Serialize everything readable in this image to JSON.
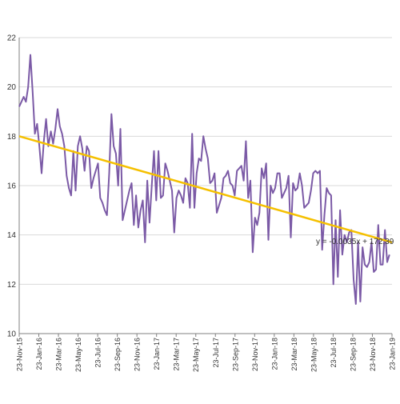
{
  "chart_data": {
    "type": "line",
    "ylim": [
      10,
      22
    ],
    "yticks": [
      10,
      12,
      14,
      16,
      18,
      20,
      22
    ],
    "grid": "horizontal",
    "legend": "none",
    "xticks": [
      "23-Nov-15",
      "23-Jan-16",
      "23-Mar-16",
      "23-May-16",
      "23-Jul-16",
      "23-Sep-16",
      "23-Nov-16",
      "23-Jan-17",
      "23-Mar-17",
      "23-May-17",
      "23-Jul-17",
      "23-Sep-17",
      "23-Nov-17",
      "23-Jan-18",
      "23-Mar-18",
      "23-May-18",
      "23-Jul-18",
      "23-Sep-18",
      "23-Nov-18",
      "23-Jan-19"
    ],
    "x_range": [
      "2015-11-23",
      "2019-01-30"
    ],
    "trendline": {
      "label": "y = -0.0035x + 172.39",
      "start": {
        "x": "2015-11-23",
        "y": 18.0
      },
      "end": {
        "x": "2019-01-30",
        "y": 13.7
      }
    },
    "colors": {
      "series": "#7b5aa6",
      "trend": "#f5c000",
      "grid": "#d9d9d9",
      "axis": "#808080"
    },
    "series": [
      {
        "points": [
          [
            "2015-11-23",
            19.2
          ],
          [
            "2015-11-30",
            19.4
          ],
          [
            "2015-12-07",
            19.6
          ],
          [
            "2015-12-14",
            19.4
          ],
          [
            "2015-12-21",
            20.0
          ],
          [
            "2015-12-28",
            21.3
          ],
          [
            "2016-01-04",
            19.8
          ],
          [
            "2016-01-11",
            18.1
          ],
          [
            "2016-01-18",
            18.5
          ],
          [
            "2016-01-25",
            17.6
          ],
          [
            "2016-02-01",
            16.5
          ],
          [
            "2016-02-08",
            17.8
          ],
          [
            "2016-02-15",
            18.7
          ],
          [
            "2016-02-22",
            17.6
          ],
          [
            "2016-03-01",
            18.2
          ],
          [
            "2016-03-08",
            17.7
          ],
          [
            "2016-03-15",
            18.3
          ],
          [
            "2016-03-22",
            19.1
          ],
          [
            "2016-03-29",
            18.4
          ],
          [
            "2016-04-05",
            18.1
          ],
          [
            "2016-04-12",
            17.6
          ],
          [
            "2016-04-19",
            16.4
          ],
          [
            "2016-04-26",
            15.9
          ],
          [
            "2016-05-03",
            15.6
          ],
          [
            "2016-05-10",
            17.4
          ],
          [
            "2016-05-17",
            15.8
          ],
          [
            "2016-05-24",
            17.6
          ],
          [
            "2016-05-31",
            18.0
          ],
          [
            "2016-06-07",
            17.5
          ],
          [
            "2016-06-14",
            16.6
          ],
          [
            "2016-06-21",
            17.6
          ],
          [
            "2016-06-28",
            17.4
          ],
          [
            "2016-07-05",
            15.9
          ],
          [
            "2016-07-12",
            16.3
          ],
          [
            "2016-07-19",
            16.6
          ],
          [
            "2016-07-26",
            16.9
          ],
          [
            "2016-08-02",
            15.5
          ],
          [
            "2016-08-09",
            15.3
          ],
          [
            "2016-08-16",
            15.0
          ],
          [
            "2016-08-23",
            14.8
          ],
          [
            "2016-08-30",
            16.5
          ],
          [
            "2016-09-06",
            18.9
          ],
          [
            "2016-09-13",
            17.6
          ],
          [
            "2016-09-20",
            17.3
          ],
          [
            "2016-09-27",
            16.0
          ],
          [
            "2016-10-04",
            18.3
          ],
          [
            "2016-10-11",
            14.6
          ],
          [
            "2016-10-18",
            15.0
          ],
          [
            "2016-10-25",
            15.4
          ],
          [
            "2016-11-01",
            15.8
          ],
          [
            "2016-11-08",
            16.1
          ],
          [
            "2016-11-15",
            14.4
          ],
          [
            "2016-11-22",
            15.6
          ],
          [
            "2016-11-29",
            14.3
          ],
          [
            "2016-12-06",
            15.0
          ],
          [
            "2016-12-13",
            15.4
          ],
          [
            "2016-12-20",
            13.7
          ],
          [
            "2016-12-27",
            16.2
          ],
          [
            "2017-01-03",
            14.5
          ],
          [
            "2017-01-10",
            16.0
          ],
          [
            "2017-01-17",
            17.4
          ],
          [
            "2017-01-24",
            15.4
          ],
          [
            "2017-01-31",
            17.4
          ],
          [
            "2017-02-07",
            15.5
          ],
          [
            "2017-02-14",
            15.6
          ],
          [
            "2017-02-21",
            16.9
          ],
          [
            "2017-02-28",
            16.6
          ],
          [
            "2017-03-07",
            16.2
          ],
          [
            "2017-03-14",
            15.8
          ],
          [
            "2017-03-21",
            14.1
          ],
          [
            "2017-03-28",
            15.5
          ],
          [
            "2017-04-04",
            15.8
          ],
          [
            "2017-04-11",
            15.6
          ],
          [
            "2017-04-18",
            15.3
          ],
          [
            "2017-04-25",
            16.3
          ],
          [
            "2017-05-02",
            16.1
          ],
          [
            "2017-05-09",
            15.1
          ],
          [
            "2017-05-16",
            18.1
          ],
          [
            "2017-05-23",
            15.1
          ],
          [
            "2017-05-30",
            16.5
          ],
          [
            "2017-06-06",
            17.1
          ],
          [
            "2017-06-13",
            17.0
          ],
          [
            "2017-06-20",
            18.0
          ],
          [
            "2017-06-27",
            17.5
          ],
          [
            "2017-07-04",
            17.1
          ],
          [
            "2017-07-11",
            16.1
          ],
          [
            "2017-07-18",
            16.2
          ],
          [
            "2017-07-25",
            16.5
          ],
          [
            "2017-08-01",
            14.9
          ],
          [
            "2017-08-08",
            15.2
          ],
          [
            "2017-08-15",
            15.5
          ],
          [
            "2017-08-22",
            16.3
          ],
          [
            "2017-08-29",
            16.4
          ],
          [
            "2017-09-05",
            16.6
          ],
          [
            "2017-09-12",
            16.1
          ],
          [
            "2017-09-19",
            16.0
          ],
          [
            "2017-09-26",
            15.6
          ],
          [
            "2017-10-03",
            16.6
          ],
          [
            "2017-10-10",
            16.7
          ],
          [
            "2017-10-17",
            16.8
          ],
          [
            "2017-10-24",
            16.2
          ],
          [
            "2017-10-31",
            17.8
          ],
          [
            "2017-11-07",
            15.5
          ],
          [
            "2017-11-14",
            16.2
          ],
          [
            "2017-11-21",
            13.3
          ],
          [
            "2017-11-28",
            14.7
          ],
          [
            "2017-12-05",
            14.4
          ],
          [
            "2017-12-12",
            14.9
          ],
          [
            "2017-12-19",
            16.7
          ],
          [
            "2017-12-26",
            16.3
          ],
          [
            "2018-01-02",
            16.9
          ],
          [
            "2018-01-09",
            13.8
          ],
          [
            "2018-01-16",
            16.0
          ],
          [
            "2018-01-23",
            15.7
          ],
          [
            "2018-01-30",
            15.9
          ],
          [
            "2018-02-06",
            16.5
          ],
          [
            "2018-02-13",
            16.5
          ],
          [
            "2018-02-20",
            15.5
          ],
          [
            "2018-02-27",
            15.7
          ],
          [
            "2018-03-06",
            15.9
          ],
          [
            "2018-03-13",
            16.4
          ],
          [
            "2018-03-20",
            13.9
          ],
          [
            "2018-03-27",
            16.1
          ],
          [
            "2018-04-03",
            15.8
          ],
          [
            "2018-04-10",
            15.9
          ],
          [
            "2018-04-17",
            16.5
          ],
          [
            "2018-04-24",
            16.0
          ],
          [
            "2018-05-01",
            15.1
          ],
          [
            "2018-05-08",
            15.2
          ],
          [
            "2018-05-15",
            15.3
          ],
          [
            "2018-05-22",
            15.8
          ],
          [
            "2018-05-29",
            16.5
          ],
          [
            "2018-06-05",
            16.6
          ],
          [
            "2018-06-12",
            16.5
          ],
          [
            "2018-06-19",
            16.6
          ],
          [
            "2018-06-26",
            13.4
          ],
          [
            "2018-07-03",
            14.8
          ],
          [
            "2018-07-10",
            15.9
          ],
          [
            "2018-07-17",
            15.7
          ],
          [
            "2018-07-24",
            15.6
          ],
          [
            "2018-07-31",
            12.0
          ],
          [
            "2018-08-07",
            14.6
          ],
          [
            "2018-08-14",
            12.3
          ],
          [
            "2018-08-21",
            15.0
          ],
          [
            "2018-08-28",
            13.2
          ],
          [
            "2018-09-04",
            14.0
          ],
          [
            "2018-09-11",
            13.7
          ],
          [
            "2018-09-18",
            14.1
          ],
          [
            "2018-09-25",
            14.2
          ],
          [
            "2018-10-02",
            12.2
          ],
          [
            "2018-10-09",
            11.2
          ],
          [
            "2018-10-16",
            13.7
          ],
          [
            "2018-10-23",
            11.3
          ],
          [
            "2018-10-30",
            13.5
          ],
          [
            "2018-11-06",
            12.8
          ],
          [
            "2018-11-13",
            12.7
          ],
          [
            "2018-11-20",
            12.9
          ],
          [
            "2018-11-27",
            13.7
          ],
          [
            "2018-12-04",
            12.5
          ],
          [
            "2018-12-11",
            12.6
          ],
          [
            "2018-12-18",
            14.4
          ],
          [
            "2018-12-25",
            12.8
          ],
          [
            "2019-01-01",
            12.8
          ],
          [
            "2019-01-08",
            14.2
          ],
          [
            "2019-01-15",
            12.9
          ],
          [
            "2019-01-22",
            13.2
          ]
        ]
      }
    ]
  }
}
